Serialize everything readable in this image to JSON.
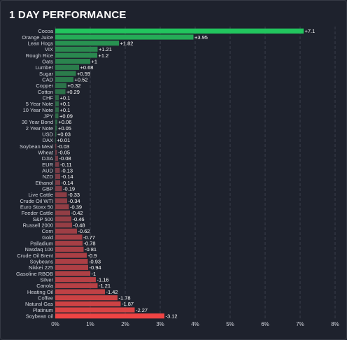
{
  "header": {
    "title": "1 DAY PERFORMANCE"
  },
  "colors": {
    "background": "#1e222d",
    "grid": "#3a3f4b",
    "text": "#d1d4dc",
    "positive": "#22c55e",
    "negative": "#ef4444"
  },
  "chart_data": {
    "type": "bar",
    "orientation": "horizontal",
    "title": "1 DAY PERFORMANCE",
    "xlabel": "",
    "ylabel": "",
    "xlim": [
      0,
      8
    ],
    "x_ticks": [
      "0%",
      "1%",
      "2%",
      "3%",
      "4%",
      "5%",
      "6%",
      "7%",
      "8%"
    ],
    "grid": true,
    "bar_value_axis": "absolute",
    "categories": [
      "Cocoa",
      "Orange Juice",
      "Lean Hogs",
      "VIX",
      "Rough Rice",
      "Oats",
      "Lumber",
      "Sugar",
      "CAD",
      "Copper",
      "Cotton",
      "CHF",
      "5 Year Note",
      "10 Year Note",
      "JPY",
      "30 Year Bond",
      "2 Year Note",
      "USD",
      "DAX",
      "Soybean Meal",
      "Wheat",
      "DJIA",
      "EUR",
      "AUD",
      "NZD",
      "Ethanol",
      "GBP",
      "Live Cattle",
      "Crude Oil WTI",
      "Euro Stoxx 50",
      "Feeder Cattle",
      "S&P 500",
      "Russell 2000",
      "Corn",
      "Gold",
      "Palladium",
      "Nasdaq 100",
      "Crude Oil Brent",
      "Soybeans",
      "Nikkei 225",
      "Gasoline RBOB",
      "Silver",
      "Canola",
      "Heating Oil",
      "Coffee",
      "Natural Gas",
      "Platinum",
      "Soybean oil"
    ],
    "values": [
      7.1,
      3.95,
      1.82,
      1.21,
      1.2,
      1,
      0.68,
      0.59,
      0.52,
      0.32,
      0.29,
      0.1,
      0.1,
      0.1,
      0.09,
      0.06,
      0.05,
      0.03,
      0.01,
      -0.03,
      -0.05,
      -0.08,
      -0.11,
      -0.13,
      -0.14,
      -0.14,
      -0.19,
      -0.33,
      -0.34,
      -0.39,
      -0.42,
      -0.46,
      -0.48,
      -0.62,
      -0.77,
      -0.78,
      -0.81,
      -0.9,
      -0.93,
      -0.94,
      -1,
      -1.16,
      -1.21,
      -1.42,
      -1.78,
      -1.87,
      -2.27,
      -3.12
    ],
    "value_labels": [
      "+7.1",
      "+3.95",
      "+1.82",
      "+1.21",
      "+1.2",
      "+1",
      "+0.68",
      "+0.59",
      "+0.52",
      "+0.32",
      "+0.29",
      "+0.1",
      "+0.1",
      "+0.1",
      "+0.09",
      "+0.06",
      "+0.05",
      "+0.03",
      "+0.01",
      "-0.03",
      "-0.05",
      "-0.08",
      "-0.11",
      "-0.13",
      "-0.14",
      "-0.14",
      "-0.19",
      "-0.33",
      "-0.34",
      "-0.39",
      "-0.42",
      "-0.46",
      "-0.48",
      "-0.62",
      "-0.77",
      "-0.78",
      "-0.81",
      "-0.9",
      "-0.93",
      "-0.94",
      "-1",
      "-1.16",
      "-1.21",
      "-1.42",
      "-1.78",
      "-1.87",
      "-2.27",
      "-3.12"
    ]
  }
}
